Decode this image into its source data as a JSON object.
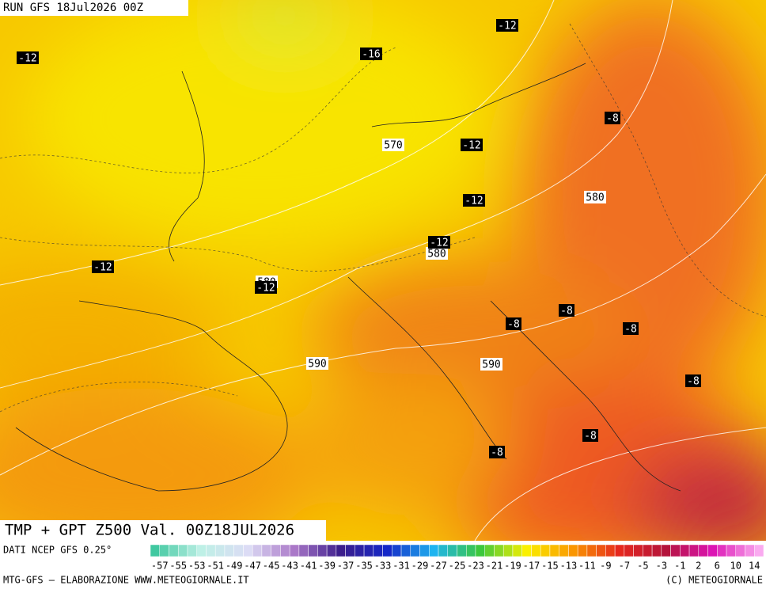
{
  "header": {
    "run": "RUN GFS 18Jul2026 00Z"
  },
  "map": {
    "temperature_labels": [
      "-12",
      "-12",
      "-16",
      "-8",
      "-12",
      "-12",
      "-12",
      "-12",
      "-12",
      "-8",
      "-8",
      "-8",
      "-8",
      "-8",
      "-8"
    ],
    "height_labels": [
      "570",
      "580",
      "580",
      "580",
      "590",
      "590"
    ]
  },
  "title": "TMP + GPT Z500 Val. 00Z18JUL2026",
  "colorbar": {
    "source": "DATI NCEP GFS 0.25°",
    "labels": [
      "-57",
      "-55",
      "-53",
      "-51",
      "-49",
      "-47",
      "-45",
      "-43",
      "-41",
      "-39",
      "-37",
      "-35",
      "-33",
      "-31",
      "-29",
      "-27",
      "-25",
      "-23",
      "-21",
      "-19",
      "-17",
      "-15",
      "-13",
      "-11",
      "-9",
      "-7",
      "-5",
      "-3",
      "-1",
      "2",
      "6",
      "10",
      "14"
    ]
  },
  "footer": {
    "left": "MTG-GFS — ELABORAZIONE WWW.METEOGIORNALE.IT",
    "right": "(C) METEOGIORNALE"
  }
}
